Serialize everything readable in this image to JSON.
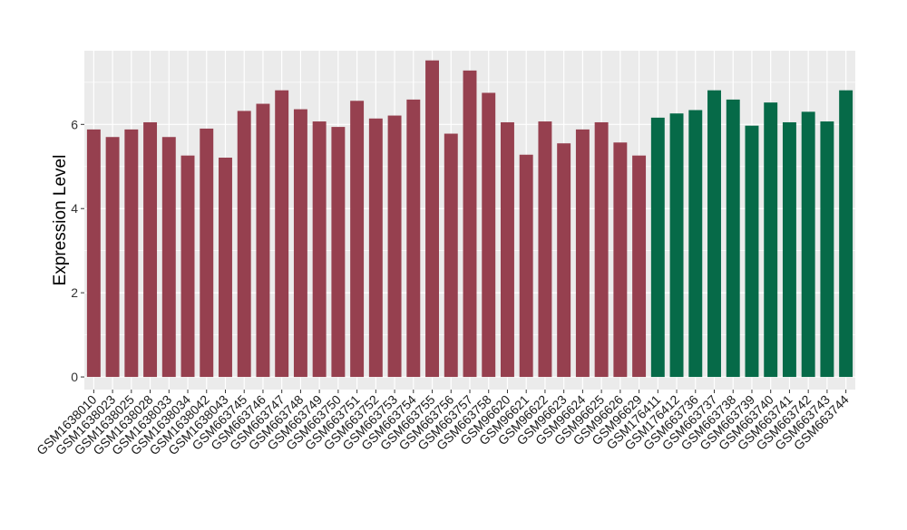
{
  "chart_data": {
    "type": "bar",
    "title": "",
    "xlabel": "",
    "ylabel": "Expression Level",
    "ylim": [
      -0.3,
      7.75
    ],
    "yticks": [
      0,
      2,
      4,
      6
    ],
    "grid": true,
    "background": "#ebebeb",
    "grid_color": "#ffffff",
    "categories": [
      "GSM1638010",
      "GSM1638023",
      "GSM1638025",
      "GSM1638028",
      "GSM1638033",
      "GSM1638034",
      "GSM1638042",
      "GSM1638043",
      "GSM663745",
      "GSM663746",
      "GSM663747",
      "GSM663748",
      "GSM663749",
      "GSM663750",
      "GSM663751",
      "GSM663752",
      "GSM663753",
      "GSM663754",
      "GSM663755",
      "GSM663756",
      "GSM663757",
      "GSM663758",
      "GSM96620",
      "GSM96621",
      "GSM96622",
      "GSM96623",
      "GSM96624",
      "GSM96625",
      "GSM96626",
      "GSM96629",
      "GSM176411",
      "GSM176412",
      "GSM663736",
      "GSM663737",
      "GSM663738",
      "GSM663739",
      "GSM663740",
      "GSM663741",
      "GSM663742",
      "GSM663743",
      "GSM663744"
    ],
    "values": [
      5.88,
      5.7,
      5.88,
      6.05,
      5.7,
      5.26,
      5.9,
      5.21,
      6.32,
      6.49,
      6.81,
      6.36,
      6.07,
      5.94,
      6.56,
      6.14,
      6.21,
      6.59,
      7.52,
      5.78,
      7.28,
      6.75,
      6.05,
      5.28,
      6.07,
      5.55,
      5.88,
      6.05,
      5.57,
      5.26,
      6.16,
      6.26,
      6.34,
      6.81,
      6.59,
      5.97,
      6.52,
      6.05,
      6.3,
      6.07,
      6.81
    ],
    "groups": [
      "a",
      "a",
      "a",
      "a",
      "a",
      "a",
      "a",
      "a",
      "a",
      "a",
      "a",
      "a",
      "a",
      "a",
      "a",
      "a",
      "a",
      "a",
      "a",
      "a",
      "a",
      "a",
      "a",
      "a",
      "a",
      "a",
      "a",
      "a",
      "a",
      "a",
      "b",
      "b",
      "b",
      "b",
      "b",
      "b",
      "b",
      "b",
      "b",
      "b",
      "b"
    ],
    "group_colors": {
      "a": "#96404f",
      "b": "#066a48"
    }
  }
}
